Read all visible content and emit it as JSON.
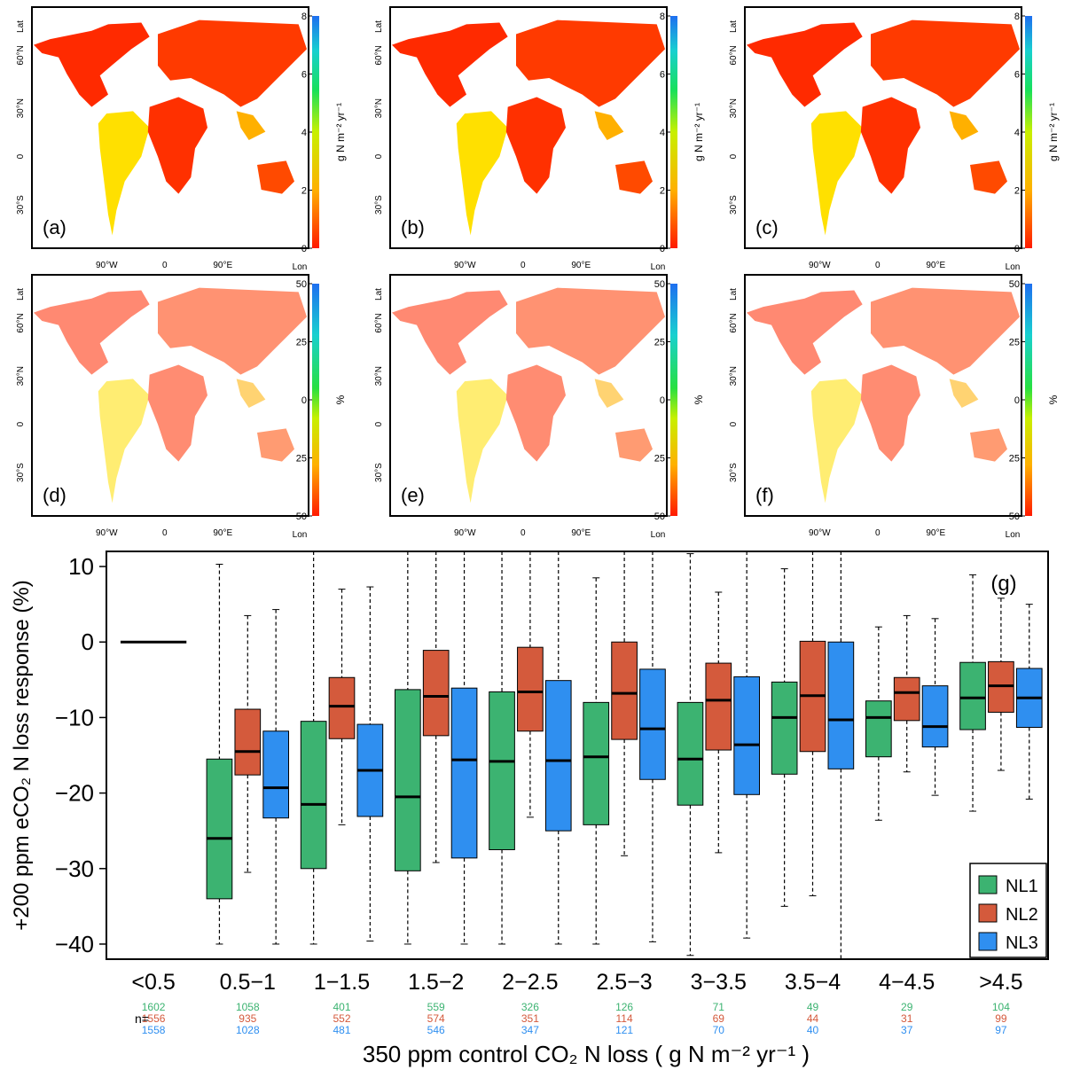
{
  "colors": {
    "NL1": "#3cb371",
    "NL2": "#d45a3c",
    "NL3": "#2f8ff0",
    "axis": "#000000",
    "background": "#ffffff"
  },
  "map_panels": {
    "lat_axis_label": "Lat",
    "lon_axis_label": "Lon",
    "lat_ticks": [
      "60°N",
      "30°N",
      "0",
      "30°S"
    ],
    "lon_ticks": [
      "90°W",
      "0",
      "90°E"
    ],
    "panels": [
      {
        "label": "(a)",
        "colorbar_label": "g N m⁻² yr⁻¹",
        "colorbar_ticks": [
          "0",
          "2",
          "4",
          "6",
          "8"
        ]
      },
      {
        "label": "(b)",
        "colorbar_label": "g N m⁻² yr⁻¹",
        "colorbar_ticks": [
          "0",
          "2",
          "4",
          "6",
          "8"
        ]
      },
      {
        "label": "(c)",
        "colorbar_label": "g N m⁻² yr⁻¹",
        "colorbar_ticks": [
          "0",
          "2",
          "4",
          "6",
          "8"
        ]
      },
      {
        "label": "(d)",
        "colorbar_label": "%",
        "colorbar_ticks": [
          "50",
          "25",
          "0",
          "25",
          "50"
        ]
      },
      {
        "label": "(e)",
        "colorbar_label": "%",
        "colorbar_ticks": [
          "50",
          "25",
          "0",
          "25",
          "50"
        ]
      },
      {
        "label": "(f)",
        "colorbar_label": "%",
        "colorbar_ticks": [
          "50",
          "25",
          "0",
          "25",
          "50"
        ]
      }
    ]
  },
  "chart_data": {
    "type": "box",
    "panel_label": "(g)",
    "ylabel": "+200 ppm eCO₂ N loss response (%)",
    "xlabel": "350 ppm control CO₂ N loss ( g N m⁻² yr⁻¹ )",
    "ylim": [
      -42,
      12
    ],
    "yticks": [
      10,
      0,
      -10,
      -20,
      -30,
      -40
    ],
    "ytick_labels": [
      "10",
      "0",
      "−10",
      "−20",
      "−30",
      "−40"
    ],
    "categories": [
      "<0.5",
      "0.5−1",
      "1−1.5",
      "1.5−2",
      "2−2.5",
      "2.5−3",
      "3−3.5",
      "3.5−4",
      "4−4.5",
      ">4.5"
    ],
    "n_label": "n=",
    "legend_position": "bottom-right",
    "reference_line": {
      "category": "<0.5",
      "value": 0
    },
    "series": [
      {
        "name": "NL1",
        "n": [
          "1602",
          "1058",
          "401",
          "559",
          "326",
          "126",
          "71",
          "49",
          "29",
          "104"
        ],
        "boxes": [
          null,
          {
            "whisker_low": -40,
            "q1": -34,
            "median": -26,
            "q3": -15.5,
            "whisker_high": 10.3
          },
          {
            "whisker_low": -40,
            "q1": -30,
            "median": -21.5,
            "q3": -10.5,
            "whisker_high": 12
          },
          {
            "whisker_low": -40,
            "q1": -30.3,
            "median": -20.5,
            "q3": -6.3,
            "whisker_high": 12
          },
          {
            "whisker_low": -40,
            "q1": -27.5,
            "median": -15.8,
            "q3": -6.6,
            "whisker_high": 12
          },
          {
            "whisker_low": -40,
            "q1": -24.2,
            "median": -15.2,
            "q3": -8,
            "whisker_high": 8.5
          },
          {
            "whisker_low": -41.5,
            "q1": -21.6,
            "median": -15.5,
            "q3": -8,
            "whisker_high": 11.7
          },
          {
            "whisker_low": -35,
            "q1": -17.5,
            "median": -10,
            "q3": -5.3,
            "whisker_high": 9.7
          },
          {
            "whisker_low": -23.6,
            "q1": -15.2,
            "median": -10,
            "q3": -7.8,
            "whisker_high": 2
          },
          {
            "whisker_low": -22.4,
            "q1": -11.6,
            "median": -7.4,
            "q3": -2.7,
            "whisker_high": 8.9
          }
        ]
      },
      {
        "name": "NL2",
        "n": [
          "1556",
          "935",
          "552",
          "574",
          "351",
          "114",
          "69",
          "44",
          "31",
          "99"
        ],
        "boxes": [
          null,
          {
            "whisker_low": -30.5,
            "q1": -17.6,
            "median": -14.5,
            "q3": -8.9,
            "whisker_high": 3.5
          },
          {
            "whisker_low": -24.2,
            "q1": -12.8,
            "median": -8.5,
            "q3": -4.7,
            "whisker_high": 7
          },
          {
            "whisker_low": -29.2,
            "q1": -12.4,
            "median": -7.2,
            "q3": -1.1,
            "whisker_high": 12
          },
          {
            "whisker_low": -23.2,
            "q1": -11.8,
            "median": -6.6,
            "q3": -0.7,
            "whisker_high": 12
          },
          {
            "whisker_low": -28.3,
            "q1": -12.9,
            "median": -6.8,
            "q3": 0,
            "whisker_high": 12
          },
          {
            "whisker_low": -27.9,
            "q1": -14.3,
            "median": -7.7,
            "q3": -2.8,
            "whisker_high": 6.6
          },
          {
            "whisker_low": -33.6,
            "q1": -14.5,
            "median": -7.1,
            "q3": 0.1,
            "whisker_high": 12
          },
          {
            "whisker_low": -17.2,
            "q1": -10.4,
            "median": -6.7,
            "q3": -4.7,
            "whisker_high": 3.5
          },
          {
            "whisker_low": -17,
            "q1": -9.3,
            "median": -5.8,
            "q3": -2.6,
            "whisker_high": 5.8
          }
        ]
      },
      {
        "name": "NL3",
        "n": [
          "1558",
          "1028",
          "481",
          "546",
          "347",
          "121",
          "70",
          "40",
          "37",
          "97"
        ],
        "boxes": [
          null,
          {
            "whisker_low": -40,
            "q1": -23.3,
            "median": -19.3,
            "q3": -11.8,
            "whisker_high": 4.3
          },
          {
            "whisker_low": -39.6,
            "q1": -23.1,
            "median": -17,
            "q3": -10.9,
            "whisker_high": 7.3
          },
          {
            "whisker_low": -40,
            "q1": -28.6,
            "median": -15.6,
            "q3": -6.1,
            "whisker_high": 12
          },
          {
            "whisker_low": -40,
            "q1": -25,
            "median": -15.7,
            "q3": -5.1,
            "whisker_high": 12
          },
          {
            "whisker_low": -39.7,
            "q1": -18.2,
            "median": -11.5,
            "q3": -3.6,
            "whisker_high": 12
          },
          {
            "whisker_low": -39.2,
            "q1": -20.2,
            "median": -13.6,
            "q3": -4.6,
            "whisker_high": 12
          },
          {
            "whisker_low": -42,
            "q1": -16.8,
            "median": -10.3,
            "q3": 0,
            "whisker_high": 12
          },
          {
            "whisker_low": -20.3,
            "q1": -13.9,
            "median": -11.2,
            "q3": -5.8,
            "whisker_high": 3.1
          },
          {
            "whisker_low": -20.8,
            "q1": -11.3,
            "median": -7.4,
            "q3": -3.5,
            "whisker_high": 5
          }
        ]
      }
    ]
  }
}
